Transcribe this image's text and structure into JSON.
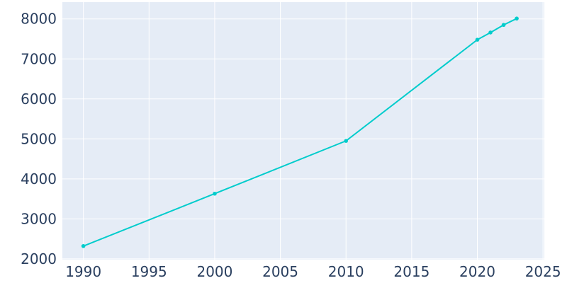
{
  "chart_data": {
    "type": "line",
    "title": "",
    "xlabel": "",
    "ylabel": "",
    "x": [
      1990,
      2000,
      2010,
      2020,
      2021,
      2022,
      2023
    ],
    "series": [
      {
        "values": [
          2320,
          3630,
          4950,
          7480,
          7660,
          7850,
          8010
        ]
      }
    ],
    "xlim": [
      1988.4,
      2025.1
    ],
    "ylim": [
      1980,
      8420
    ],
    "xticks": [
      1990,
      1995,
      2000,
      2005,
      2010,
      2015,
      2020,
      2025
    ],
    "yticks": [
      2000,
      3000,
      4000,
      5000,
      6000,
      7000,
      8000
    ],
    "xtick_labels": [
      "1990",
      "1995",
      "2000",
      "2005",
      "2010",
      "2015",
      "2020",
      "2025"
    ],
    "ytick_labels": [
      "2000",
      "3000",
      "4000",
      "5000",
      "6000",
      "7000",
      "8000"
    ],
    "grid": true,
    "legend": "none",
    "colors": {
      "line": "#00cccc",
      "plot_background": "#e5ecf6",
      "grid": "#ffffff",
      "tick_text": "#2a3f5f"
    }
  }
}
